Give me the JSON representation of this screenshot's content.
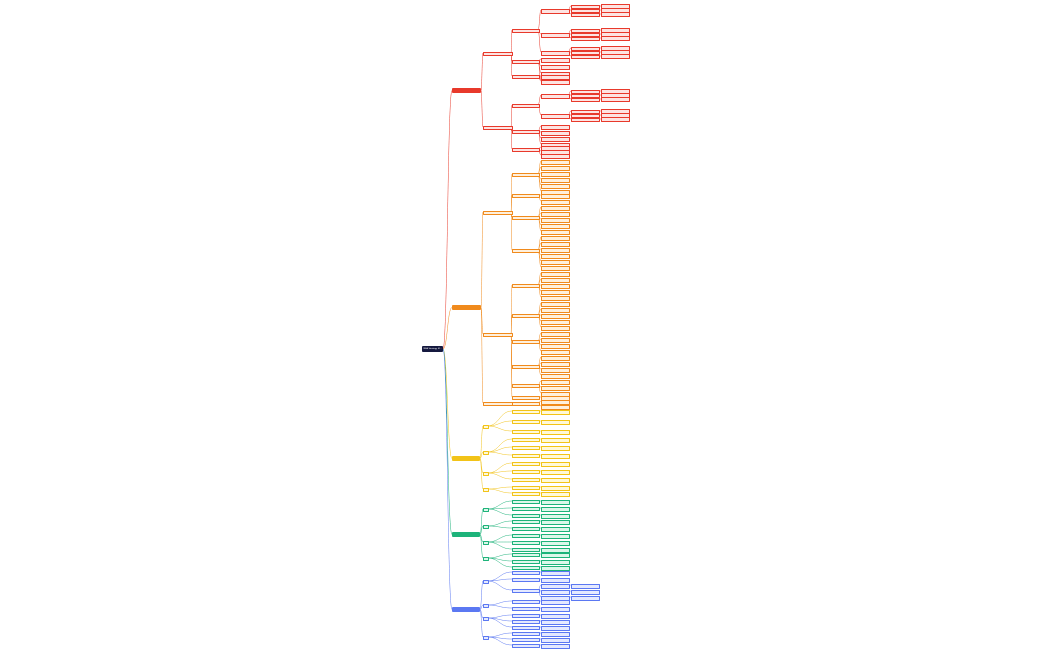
{
  "mindmap": {
    "root": {
      "label": "MBA Strategy M..."
    },
    "branches": [
      {
        "id": "b1",
        "color": "#e8392b",
        "fill": "#fde4e2"
      },
      {
        "id": "b2",
        "color": "#f08a1c",
        "fill": "#fff0dc"
      },
      {
        "id": "b3",
        "color": "#f2c318",
        "fill": "#fff9d8"
      },
      {
        "id": "b4",
        "color": "#1db37a",
        "fill": "#dcf7ea"
      },
      {
        "id": "b5",
        "color": "#5b78f2",
        "fill": "#e4e9ff"
      }
    ],
    "line_color": "#9aa4b8"
  }
}
